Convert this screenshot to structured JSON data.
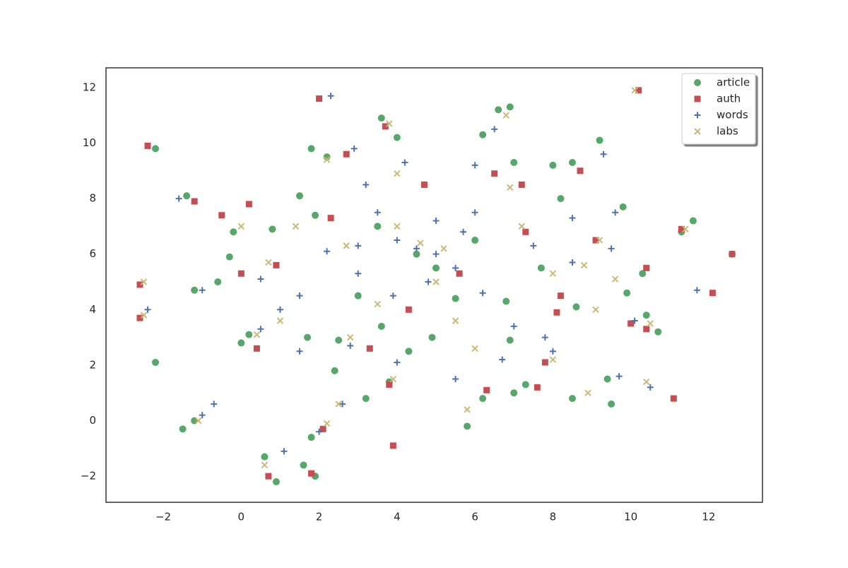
{
  "chart_data": {
    "type": "scatter",
    "xlim": [
      -3.47,
      13.38
    ],
    "ylim": [
      -2.94,
      12.71
    ],
    "xticks": [
      {
        "value": -2,
        "label": "−2"
      },
      0,
      2,
      4,
      6,
      8,
      10,
      12
    ],
    "yticks": [
      {
        "value": -2,
        "label": "−2"
      },
      0,
      2,
      4,
      6,
      8,
      10,
      12
    ],
    "legend": "upper right",
    "series": [
      {
        "name": "article",
        "color": "#55a868",
        "marker": "circle",
        "x": [
          4.5,
          5,
          3.5,
          6,
          6.6,
          6.9,
          6.2,
          3.6,
          4,
          1.8,
          2.2,
          9.2,
          8.5,
          11.6,
          11.3,
          10.4,
          10.7,
          12.6,
          -2.2,
          -1.4,
          -2.2,
          -1.5,
          -1.2,
          0.9,
          0.6,
          1.9,
          1.6,
          1.8,
          2.4,
          3.2,
          3.8,
          5.8,
          6.2,
          7,
          7.3,
          8.5,
          9.4,
          9.5,
          10.3,
          9.8,
          8.2,
          7,
          8,
          0,
          0.2,
          1.7,
          -1.2,
          -0.6,
          -0.3,
          1.5,
          1.9,
          -0.2,
          0.8,
          2.5,
          4.9,
          6.9,
          8.6,
          9.9,
          7.7,
          3.6,
          4.3,
          3,
          5.5,
          6.8
        ],
        "y": [
          6,
          5.5,
          7,
          6.5,
          11.2,
          11.3,
          10.3,
          10.9,
          10.2,
          9.8,
          9.5,
          10.1,
          9.3,
          7.2,
          6.8,
          3.8,
          3.2,
          6,
          9.8,
          8.1,
          2.1,
          -0.3,
          0,
          -2.2,
          -1.3,
          -2,
          -1.6,
          -0.6,
          1.8,
          0.8,
          1.4,
          -0.2,
          0.8,
          1,
          1.3,
          0.8,
          1.5,
          0.6,
          5.3,
          7.7,
          8,
          9.3,
          9.2,
          2.8,
          3.1,
          3,
          4.7,
          5,
          5.9,
          8.1,
          7.4,
          6.8,
          6.9,
          2.9,
          3,
          2.9,
          4.1,
          4.6,
          5.5,
          3.4,
          2.5,
          4.5,
          4.4,
          4.3
        ]
      },
      {
        "name": "auth",
        "color": "#c44e52",
        "marker": "square",
        "x": [
          -2.4,
          2,
          -1.2,
          0.2,
          -0.5,
          10.2,
          10,
          10.4,
          12.1,
          12.6,
          11.1,
          11.3,
          -2.6,
          -2.6,
          0.7,
          1.8,
          3.9,
          2.1,
          2.7,
          3.7,
          4.7,
          6.5,
          7.2,
          8.7,
          7.3,
          9.1,
          10.4,
          8.2,
          7.8,
          6.3,
          7.6,
          3.3,
          3.8,
          0.4,
          0.9,
          0,
          2.3,
          4.3,
          5.6,
          8.1
        ],
        "y": [
          9.9,
          11.6,
          7.9,
          7.8,
          7.4,
          11.9,
          3.5,
          3.3,
          4.6,
          6,
          0.8,
          6.9,
          3.7,
          4.9,
          -2,
          -1.9,
          -0.9,
          -0.3,
          9.6,
          10.6,
          8.5,
          8.9,
          8.5,
          9,
          6.8,
          6.5,
          5.5,
          4.5,
          2.1,
          1.1,
          1.2,
          2.6,
          1.3,
          2.6,
          5.6,
          5.3,
          7.3,
          4,
          5.3,
          3.9
        ]
      },
      {
        "name": "words",
        "color": "#4c72b0",
        "marker": "plus",
        "x": [
          4.5,
          5,
          4,
          5.5,
          3.5,
          5.7,
          4.8,
          3.2,
          2.3,
          4.2,
          6,
          6.5,
          7.5,
          8.5,
          9.5,
          9.6,
          11.7,
          -2.4,
          -1.6,
          -0.7,
          -1,
          1.1,
          2,
          2.6,
          1.5,
          0.5,
          1,
          1.5,
          0.5,
          -1,
          2.2,
          3,
          2.8,
          4,
          5.5,
          6.7,
          7,
          8,
          9.7,
          10.5,
          10.1,
          8.5,
          9.3,
          3.9,
          6.2,
          5,
          6,
          3,
          7.8,
          2.9
        ],
        "y": [
          6.2,
          6,
          6.5,
          5.5,
          7.5,
          6.8,
          5,
          8.5,
          11.7,
          9.3,
          9.2,
          10.5,
          6.3,
          5.7,
          6.2,
          7.5,
          4.7,
          4,
          8,
          0.6,
          0.2,
          -1.1,
          -0.4,
          0.6,
          2.5,
          3.3,
          4,
          4.5,
          5.1,
          4.7,
          6.1,
          5.3,
          2.7,
          2.1,
          1.5,
          2.2,
          3.4,
          2.5,
          1.6,
          1.2,
          3.6,
          7.3,
          9.6,
          4.5,
          4.6,
          7.2,
          7.5,
          6.3,
          3,
          9.8
        ]
      },
      {
        "name": "labs",
        "color": "#ccb974",
        "marker": "x",
        "x": [
          4.6,
          5.2,
          4,
          5,
          3.8,
          4,
          6.8,
          6.9,
          7.2,
          8,
          8.8,
          9.6,
          9.1,
          10.5,
          11.4,
          10.4,
          8.9,
          8,
          6,
          5.8,
          3.9,
          2.5,
          2.2,
          0.6,
          -1.1,
          -2.5,
          -2.5,
          1,
          0.4,
          0.7,
          0,
          1.4,
          2.2,
          2.7,
          3.5,
          5.5,
          9.2,
          10.1,
          2.8
        ],
        "y": [
          6.4,
          6.2,
          7,
          5,
          10.7,
          8.9,
          11,
          8.4,
          7,
          5.3,
          5.6,
          5.1,
          4,
          3.5,
          6.9,
          1.4,
          1,
          2.2,
          2.6,
          0.4,
          1.5,
          0.6,
          -0.1,
          -1.6,
          0,
          3.8,
          5,
          3.6,
          3.1,
          5.7,
          7,
          7,
          9.4,
          6.3,
          4.2,
          3.6,
          6.5,
          11.9,
          3
        ]
      }
    ]
  }
}
